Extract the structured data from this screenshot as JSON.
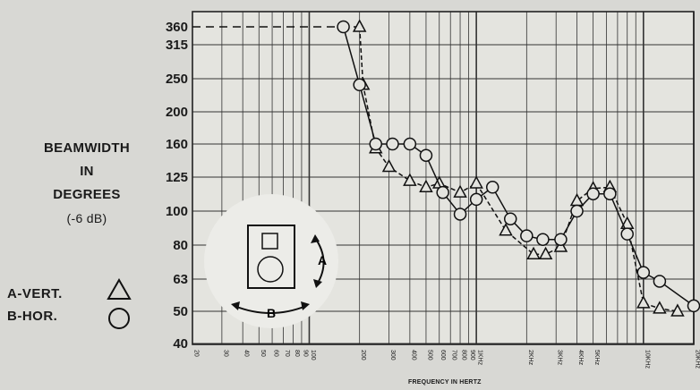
{
  "chart_data": {
    "type": "line",
    "title": "",
    "ylabel_lines": [
      "BEAMWIDTH",
      "IN",
      "DEGREES"
    ],
    "ylabel_unit": "(-6 dB)",
    "xlabel": "FREQUENCY IN HERTZ",
    "x_scale": "log",
    "xlim": [
      20,
      20000
    ],
    "ylim": [
      40,
      360
    ],
    "y_ticks": [
      360,
      315,
      250,
      200,
      160,
      125,
      100,
      80,
      63,
      50,
      40
    ],
    "x_tick_labels": [
      {
        "label": "20",
        "x": 20
      },
      {
        "label": "30",
        "x": 30
      },
      {
        "label": "40",
        "x": 40
      },
      {
        "label": "50",
        "x": 50
      },
      {
        "label": "60",
        "x": 60
      },
      {
        "label": "70",
        "x": 70
      },
      {
        "label": "80",
        "x": 80
      },
      {
        "label": "90",
        "x": 90
      },
      {
        "label": "100",
        "x": 100
      },
      {
        "label": "200",
        "x": 200
      },
      {
        "label": "300",
        "x": 300
      },
      {
        "label": "400",
        "x": 400
      },
      {
        "label": "500",
        "x": 500
      },
      {
        "label": "600",
        "x": 600
      },
      {
        "label": "700",
        "x": 700
      },
      {
        "label": "800",
        "x": 800
      },
      {
        "label": "900",
        "x": 900
      },
      {
        "label": "1KHz",
        "x": 1000
      },
      {
        "label": "2KHz",
        "x": 2000
      },
      {
        "label": "3KHz",
        "x": 3000
      },
      {
        "label": "4KHz",
        "x": 4000
      },
      {
        "label": "5KHz",
        "x": 5000
      },
      {
        "label": "10KHz",
        "x": 10000
      },
      {
        "label": "20KHz",
        "x": 20000
      }
    ],
    "reference_line": {
      "y": 360,
      "x_end": 200
    },
    "series": [
      {
        "name": "A-VERT.",
        "marker": "triangle",
        "line": "dashed",
        "x": [
          200,
          210,
          250,
          300,
          400,
          500,
          600,
          800,
          1000,
          1500,
          2200,
          2600,
          3200,
          4000,
          5000,
          6300,
          8000,
          10000,
          12500,
          16000
        ],
        "y": [
          360,
          240,
          155,
          135,
          122,
          117,
          120,
          113,
          120,
          88,
          75,
          75,
          79,
          107,
          116,
          117,
          92,
          53,
          51,
          50
        ]
      },
      {
        "name": "B-HOR.",
        "marker": "circle",
        "line": "solid",
        "x": [
          160,
          200,
          250,
          315,
          400,
          500,
          630,
          800,
          1000,
          1250,
          1600,
          2000,
          2500,
          3200,
          4000,
          5000,
          6300,
          8000,
          10000,
          12500,
          20000
        ],
        "y": [
          360,
          240,
          160,
          160,
          160,
          147,
          113,
          98,
          108,
          117,
          95,
          85,
          83,
          83,
          100,
          112,
          112,
          86,
          66,
          62,
          52
        ]
      }
    ]
  },
  "legend": {
    "a_label": "A-VERT.",
    "b_label": "B-HOR."
  },
  "inset": {
    "vertical_label": "A",
    "horizontal_label": "B"
  }
}
